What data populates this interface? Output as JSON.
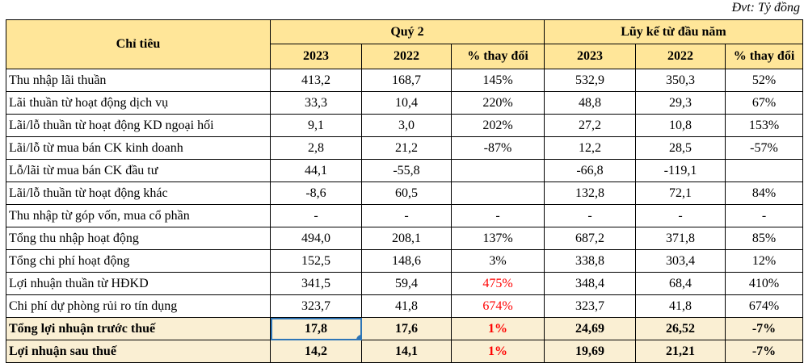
{
  "unit_label": "Đvt: Tỷ đồng",
  "colors": {
    "header_fill": "#FFE699",
    "subtotal_fill": "#FAEFD3",
    "accent_red": "#FF0000",
    "selection_blue": "#2E75B6",
    "grid_black": "#000000"
  },
  "table": {
    "header": {
      "indicator": "Chỉ tiêu",
      "group_q2": "Quý 2",
      "group_ytd": "Lũy kế từ đầu năm",
      "sub_q2": [
        "2023",
        "2022",
        "% thay đổi"
      ],
      "sub_ytd": [
        "2023",
        "2022",
        "% thay đổi"
      ]
    },
    "rows": [
      {
        "label": "Thu nhập lãi thuần",
        "q2_2023": "413,2",
        "q2_2022": "168,7",
        "q2_pct": "145%",
        "ytd_2023": "532,9",
        "ytd_2022": "350,3",
        "ytd_pct": "52%"
      },
      {
        "label": "Lãi thuần từ hoạt động dịch vụ",
        "q2_2023": "33,3",
        "q2_2022": "10,4",
        "q2_pct": "220%",
        "ytd_2023": "48,8",
        "ytd_2022": "29,3",
        "ytd_pct": "67%"
      },
      {
        "label": "Lãi/lỗ thuần từ hoạt động KD ngoại hối",
        "q2_2023": "9,1",
        "q2_2022": "3,0",
        "q2_pct": "202%",
        "ytd_2023": "27,2",
        "ytd_2022": "10,8",
        "ytd_pct": "153%"
      },
      {
        "label": "Lãi/lỗ từ mua bán CK kinh doanh",
        "q2_2023": "2,8",
        "q2_2022": "21,2",
        "q2_pct": "-87%",
        "ytd_2023": "12,2",
        "ytd_2022": "28,5",
        "ytd_pct": "-57%"
      },
      {
        "label": "Lỗ/lãi từ mua bán CK đầu tư",
        "q2_2023": "44,1",
        "q2_2022": "-55,8",
        "q2_pct": "",
        "ytd_2023": "-66,8",
        "ytd_2022": "-119,1",
        "ytd_pct": ""
      },
      {
        "label": "Lãi/lỗ thuần từ hoạt động khác",
        "q2_2023": "-8,6",
        "q2_2022": "60,5",
        "q2_pct": "",
        "ytd_2023": "132,8",
        "ytd_2022": "72,1",
        "ytd_pct": "84%"
      },
      {
        "label": "Thu nhập từ góp vốn, mua cổ phần",
        "q2_2023": "-",
        "q2_2022": "-",
        "q2_pct": "-",
        "ytd_2023": "-",
        "ytd_2022": "-",
        "ytd_pct": "-"
      },
      {
        "label": "Tổng thu nhập hoạt động",
        "q2_2023": "494,0",
        "q2_2022": "208,1",
        "q2_pct": "137%",
        "ytd_2023": "687,2",
        "ytd_2022": "371,8",
        "ytd_pct": "85%"
      },
      {
        "label": "Tổng chi phí hoạt động",
        "q2_2023": "152,5",
        "q2_2022": "148,6",
        "q2_pct": "3%",
        "ytd_2023": "338,8",
        "ytd_2022": "303,4",
        "ytd_pct": "12%"
      },
      {
        "label": "Lợi nhuận thuần từ HĐKD",
        "q2_2023": "341,5",
        "q2_2022": "59,4",
        "q2_pct": "475%",
        "ytd_2023": "348,4",
        "ytd_2022": "68,4",
        "ytd_pct": "410%",
        "q2_pct_red": true
      },
      {
        "label": "Chi phí dự phòng rủi ro tín dụng",
        "q2_2023": "323,7",
        "q2_2022": "41,8",
        "q2_pct": "674%",
        "ytd_2023": "323,7",
        "ytd_2022": "41,8",
        "ytd_pct": "674%",
        "q2_pct_red": true
      },
      {
        "label": "Tổng lợi nhuận trước thuế",
        "q2_2023": "17,8",
        "q2_2022": "17,6",
        "q2_pct": "1%",
        "ytd_2023": "24,69",
        "ytd_2022": "26,52",
        "ytd_pct": "-7%",
        "q2_pct_red": true,
        "emphasis": true,
        "selected": "q2_2023"
      },
      {
        "label": "Lợi nhuận sau thuế",
        "q2_2023": "14,2",
        "q2_2022": "14,1",
        "q2_pct": "1%",
        "ytd_2023": "19,69",
        "ytd_2022": "21,21",
        "ytd_pct": "-7%",
        "q2_pct_red": true,
        "emphasis": true
      }
    ]
  }
}
